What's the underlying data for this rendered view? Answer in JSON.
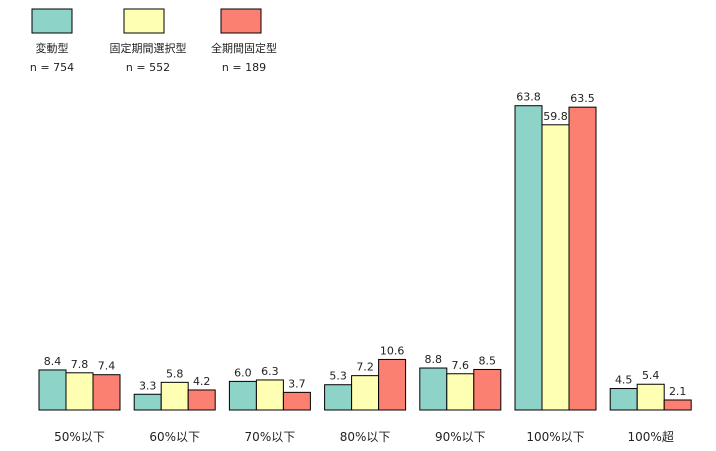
{
  "chart_data": {
    "type": "bar",
    "categories": [
      "50%以下",
      "60%以下",
      "70%以下",
      "80%以下",
      "90%以下",
      "100%以下",
      "100%超"
    ],
    "series": [
      {
        "name": "変動型",
        "n_label": "n = 754",
        "color": "#8ED3C7",
        "values": [
          8.4,
          3.3,
          6.0,
          5.3,
          8.8,
          63.8,
          4.5
        ],
        "labels": [
          "8.4",
          "3.3",
          "6.0",
          "5.3",
          "8.8",
          "63.8",
          "4.5"
        ]
      },
      {
        "name": "固定期間選択型",
        "n_label": "n = 552",
        "color": "#FFFFB3",
        "values": [
          7.8,
          5.8,
          6.3,
          7.2,
          7.6,
          59.8,
          5.4
        ],
        "labels": [
          "7.8",
          "5.8",
          "6.3",
          "7.2",
          "7.6",
          "59.8",
          "5.4"
        ]
      },
      {
        "name": "全期間固定型",
        "n_label": "n = 189",
        "color": "#FB8072",
        "values": [
          7.4,
          4.2,
          3.7,
          10.6,
          8.5,
          63.5,
          2.1
        ],
        "labels": [
          "7.4",
          "4.2",
          "3.7",
          "10.6",
          "8.5",
          "63.5",
          "2.1"
        ]
      }
    ],
    "ylim": [
      0,
      65
    ],
    "legend_position": "top-left",
    "grid": false
  }
}
